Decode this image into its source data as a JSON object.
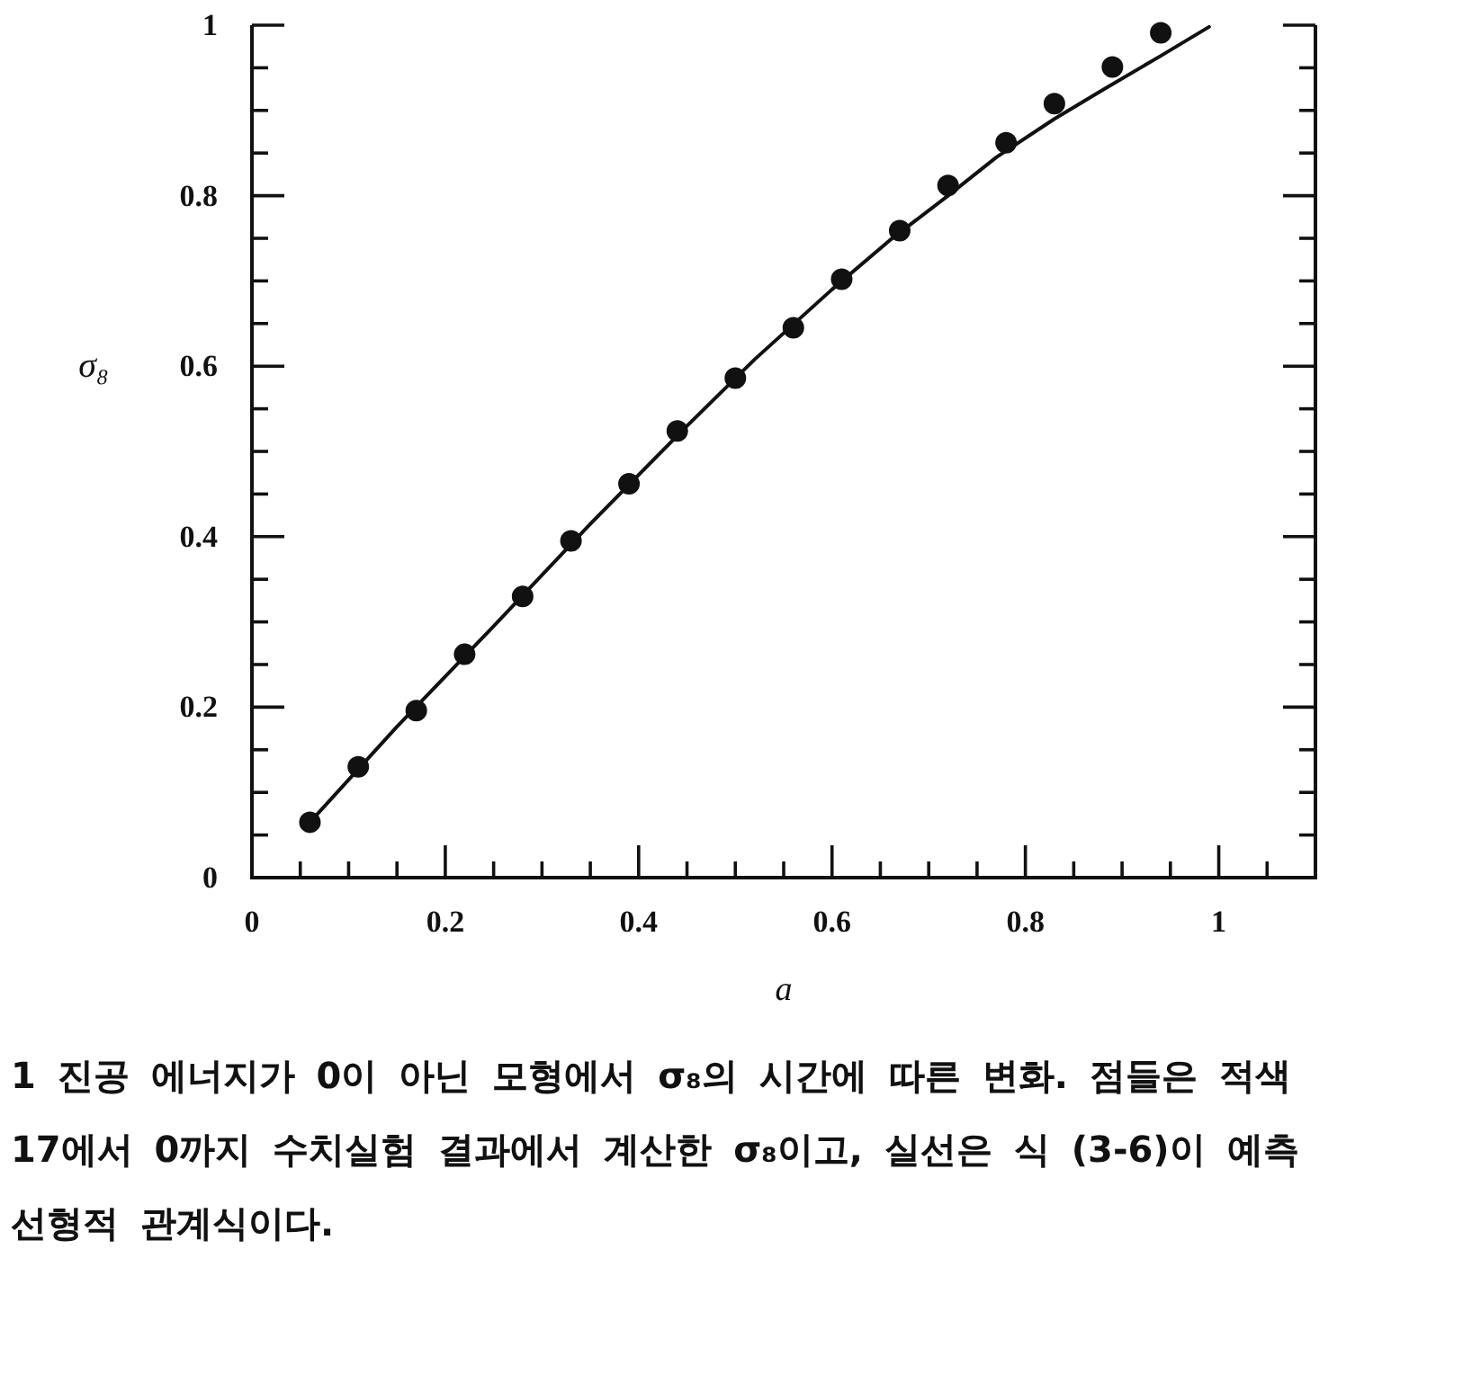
{
  "chart_data": {
    "type": "scatter",
    "xlabel": "a",
    "ylabel": "σ₈",
    "annotations": [
      "1 진공 에너지가 0이 아닌 모형에서 σ₈의 시간에 따른 변화. 점들은 적색\n17에서 0까지 수치실험 결과에서 계산한 σ₈이고, 실선은 식 (3-6)이 예측\n선형적 관계식이다."
    ],
    "xlim": [
      0,
      1.1
    ],
    "ylim": [
      0,
      1
    ],
    "xticks": [
      0,
      {
        "value": 0.05,
        "label": null
      },
      {
        "value": 0.1,
        "label": null
      },
      {
        "value": 0.15,
        "label": null
      },
      0.2,
      {
        "value": 0.25,
        "label": null
      },
      {
        "value": 0.3,
        "label": null
      },
      {
        "value": 0.35,
        "label": null
      },
      0.4,
      {
        "value": 0.45,
        "label": null
      },
      {
        "value": 0.5,
        "label": null
      },
      {
        "value": 0.55,
        "label": null
      },
      0.6,
      {
        "value": 0.65,
        "label": null
      },
      {
        "value": 0.7,
        "label": null
      },
      {
        "value": 0.75,
        "label": null
      },
      0.8,
      {
        "value": 0.85,
        "label": null
      },
      {
        "value": 0.9,
        "label": null
      },
      {
        "value": 0.95,
        "label": null
      },
      1,
      {
        "value": 1.05,
        "label": null
      }
    ],
    "yticks": [
      0,
      {
        "value": 0.05,
        "label": null
      },
      {
        "value": 0.1,
        "label": null
      },
      {
        "value": 0.15,
        "label": null
      },
      0.2,
      {
        "value": 0.25,
        "label": null
      },
      {
        "value": 0.3,
        "label": null
      },
      {
        "value": 0.35,
        "label": null
      },
      0.4,
      {
        "value": 0.45,
        "label": null
      },
      {
        "value": 0.5,
        "label": null
      },
      {
        "value": 0.55,
        "label": null
      },
      0.6,
      {
        "value": 0.65,
        "label": null
      },
      {
        "value": 0.7,
        "label": null
      },
      {
        "value": 0.75,
        "label": null
      },
      0.8,
      {
        "value": 0.85,
        "label": null
      },
      {
        "value": 0.9,
        "label": null
      },
      {
        "value": 0.95,
        "label": null
      },
      1
    ],
    "marker": "circle",
    "series": [
      {
        "color": "#111111",
        "x": [
          0.06,
          0.11,
          0.17,
          0.22,
          0.28,
          0.33,
          0.39,
          0.44,
          0.5,
          0.56,
          0.61,
          0.67,
          0.72,
          0.78,
          0.83,
          0.89,
          0.94
        ],
        "values": [
          0.065,
          0.13,
          0.196,
          0.262,
          0.33,
          0.395,
          0.462,
          0.524,
          0.586,
          0.645,
          0.702,
          0.759,
          0.812,
          0.862,
          0.908,
          0.951,
          0.991
        ]
      },
      {
        "type": "line",
        "color": "#111111",
        "marker": "none",
        "line_style": "solid",
        "x": [
          0.06,
          0.15,
          0.25,
          0.35,
          0.45,
          0.52,
          0.6,
          0.66,
          0.72,
          0.77,
          0.83,
          0.88,
          0.94,
          0.99
        ],
        "values": [
          0.065,
          0.177,
          0.295,
          0.415,
          0.53,
          0.608,
          0.69,
          0.748,
          0.8,
          0.845,
          0.89,
          0.924,
          0.964,
          0.998
        ]
      }
    ]
  }
}
